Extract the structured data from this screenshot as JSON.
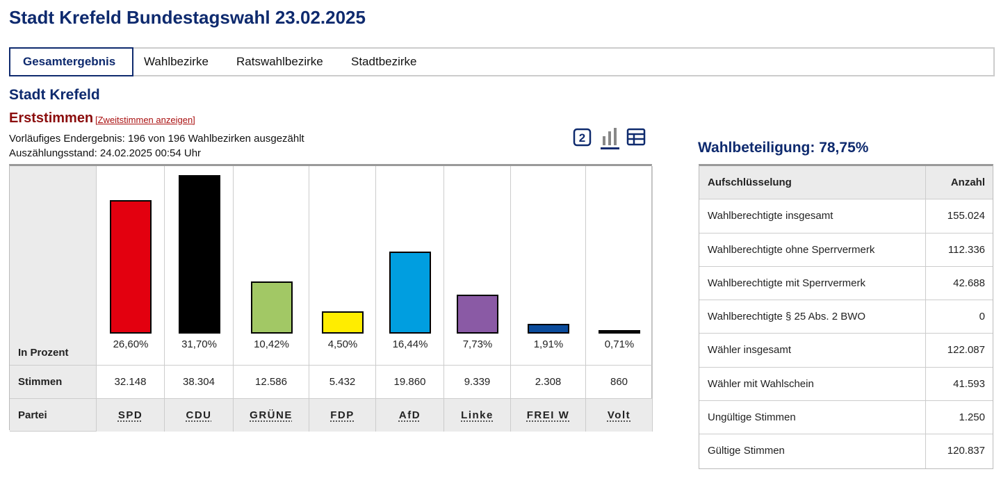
{
  "header": {
    "title": "Stadt Krefeld Bundestagswahl 23.02.2025"
  },
  "tabs": [
    "Gesamtergebnis",
    "Wahlbezirke",
    "Ratswahlbezirke",
    "Stadtbezirke"
  ],
  "section": {
    "title": "Stadt Krefeld",
    "vote_type": "Erststimmen",
    "toggle_link": "[Zweitstimmen anzeigen]",
    "status": [
      "Vorläufiges Endergebnis: 196 von 196 Wahlbezirken ausgezählt",
      "Auszählungsstand: 24.02.2025 00:54 Uhr"
    ]
  },
  "chart_data": {
    "type": "bar",
    "row_labels": [
      "In Prozent",
      "Stimmen",
      "Partei"
    ],
    "categories": [
      "SPD",
      "CDU",
      "GRÜNE",
      "FDP",
      "AfD",
      "Linke",
      "FREI W",
      "Volt"
    ],
    "values": [
      26.6,
      31.7,
      10.42,
      4.5,
      16.44,
      7.73,
      1.91,
      0.71
    ],
    "value_labels": [
      "26,60%",
      "31,70%",
      "10,42%",
      "4,50%",
      "16,44%",
      "7,73%",
      "1,91%",
      "0,71%"
    ],
    "votes": [
      "32.148",
      "38.304",
      "12.586",
      "5.432",
      "19.860",
      "9.339",
      "2.308",
      "860"
    ],
    "colors": [
      "#e3000f",
      "#000000",
      "#a2c865",
      "#ffed00",
      "#009ee0",
      "#8a5aa5",
      "#0b4c9c",
      "#111111"
    ]
  },
  "turnout": {
    "title": "Wahlbeteiligung: 78,75%",
    "table": {
      "header": [
        "Aufschlüsselung",
        "Anzahl"
      ],
      "rows": [
        [
          "Wahlberechtigte insgesamt",
          "155.024"
        ],
        [
          "Wahlberechtigte ohne Sperrvermerk",
          "112.336"
        ],
        [
          "Wahlberechtigte mit Sperrvermerk",
          "42.688"
        ],
        [
          "Wahlberechtigte § 25 Abs. 2 BWO",
          "0"
        ],
        [
          "Wähler insgesamt",
          "122.087"
        ],
        [
          "Wähler mit Wahlschein",
          "41.593"
        ],
        [
          "Ungültige Stimmen",
          "1.250"
        ],
        [
          "Gültige Stimmen",
          "120.837"
        ]
      ]
    }
  }
}
